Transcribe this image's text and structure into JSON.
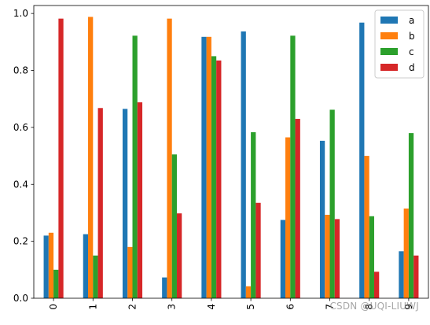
{
  "chart_data": {
    "type": "bar",
    "categories": [
      "0",
      "1",
      "2",
      "3",
      "4",
      "5",
      "6",
      "7",
      "8",
      "9"
    ],
    "series": [
      {
        "name": "a",
        "color": "#1f77b4",
        "values": [
          0.22,
          0.225,
          0.665,
          0.073,
          0.918,
          0.937,
          0.275,
          0.553,
          0.968,
          0.165
        ]
      },
      {
        "name": "b",
        "color": "#ff7f0e",
        "values": [
          0.23,
          0.988,
          0.18,
          0.982,
          0.918,
          0.042,
          0.565,
          0.293,
          0.5,
          0.315
        ]
      },
      {
        "name": "c",
        "color": "#2ca02c",
        "values": [
          0.1,
          0.15,
          0.922,
          0.505,
          0.85,
          0.583,
          0.922,
          0.662,
          0.288,
          0.58
        ]
      },
      {
        "name": "d",
        "color": "#d62728",
        "values": [
          0.982,
          0.668,
          0.688,
          0.298,
          0.835,
          0.335,
          0.63,
          0.278,
          0.093,
          0.15
        ]
      }
    ],
    "ylim": [
      0,
      1.028
    ],
    "yticks": [
      "0.0",
      "0.2",
      "0.4",
      "0.6",
      "0.8",
      "1.0"
    ],
    "xtick_rotation": "vertical",
    "legend": {
      "placement": "top-right",
      "entries": [
        "a",
        "b",
        "c",
        "d"
      ]
    },
    "grid": false,
    "title": "",
    "xlabel": "",
    "ylabel": ""
  },
  "watermark": "CSDN @UQI-LIUWJ"
}
